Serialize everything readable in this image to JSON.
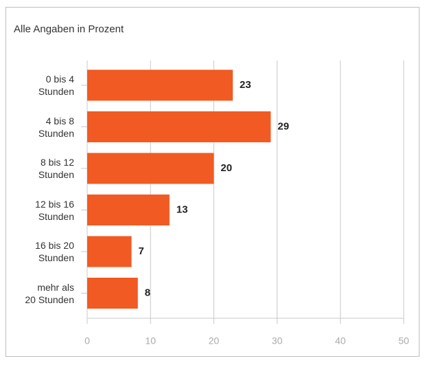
{
  "chart_data": {
    "type": "bar",
    "orientation": "horizontal",
    "title": "Alle Angaben in Prozent",
    "categories": [
      "0 bis 4\nStunden",
      "4 bis 8\nStunden",
      "8 bis 12\nStunden",
      "12 bis 16\nStunden",
      "16 bis 20\nStunden",
      "mehr als\n20 Stunden"
    ],
    "values": [
      23,
      29,
      20,
      13,
      7,
      8
    ],
    "color": "#f15a22",
    "xlim": [
      0,
      50
    ],
    "xticks": [
      0,
      10,
      20,
      30,
      40,
      50
    ],
    "grid": true
  }
}
